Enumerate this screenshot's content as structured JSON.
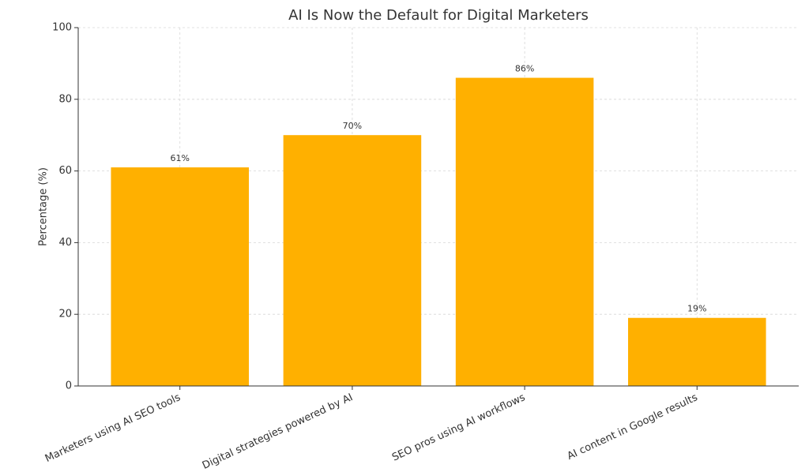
{
  "chart_data": {
    "type": "bar",
    "title": "AI Is Now the Default for Digital Marketers",
    "y_label": "Percentage (%)",
    "categories": [
      "Marketers using AI SEO tools",
      "Digital strategies powered by AI",
      "SEO pros using AI workflows",
      "AI content in Google results"
    ],
    "values": [
      61,
      70,
      86,
      19
    ],
    "value_labels": [
      "61%",
      "70%",
      "86%",
      "19%"
    ],
    "color": "#ffb000",
    "ylim": [
      0,
      100
    ],
    "yticks": [
      0,
      20,
      40,
      60,
      80,
      100
    ],
    "grid": true
  }
}
